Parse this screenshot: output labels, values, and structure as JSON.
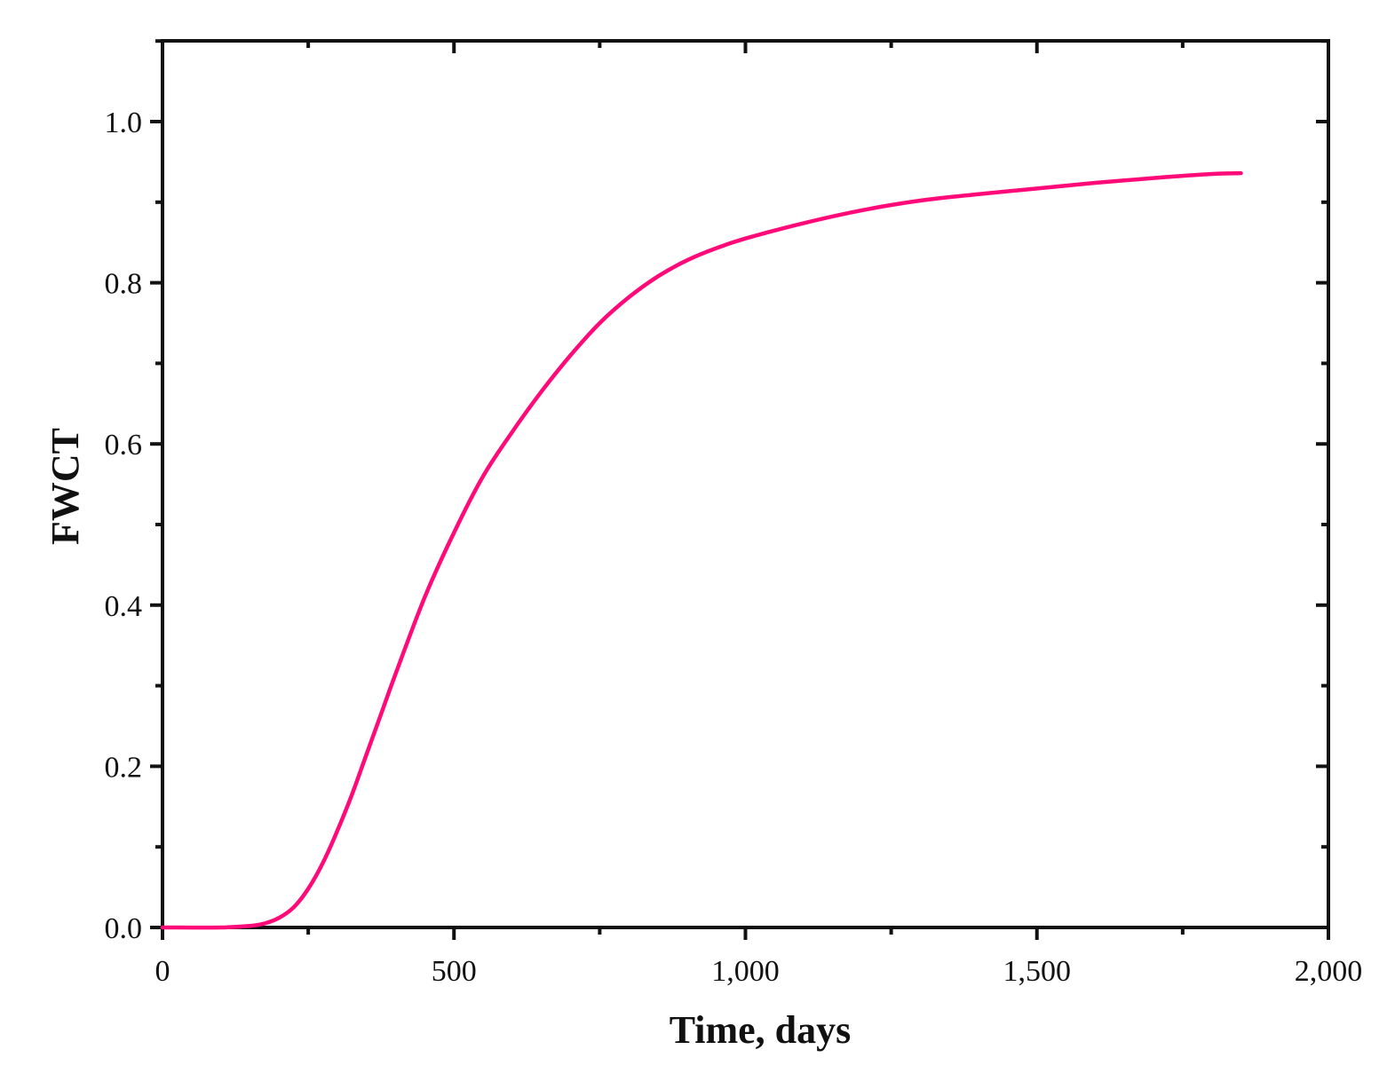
{
  "chart_data": {
    "type": "line",
    "title": "",
    "xlabel": "Time, days",
    "ylabel": "FWCT",
    "xlim": [
      0,
      2000
    ],
    "ylim": [
      0,
      1.1
    ],
    "x_major_ticks": [
      0,
      500,
      1000,
      1500,
      2000
    ],
    "x_tick_labels": [
      "0",
      "500",
      "1,000",
      "1,500",
      "2,000"
    ],
    "y_major_ticks": [
      0.0,
      0.2,
      0.4,
      0.6,
      0.8,
      1.0
    ],
    "y_tick_labels": [
      "0.0",
      "0.2",
      "0.4",
      "0.6",
      "0.8",
      "1.0"
    ],
    "grid": false,
    "legend": "none",
    "line_color": "#ff0a78",
    "series": [
      {
        "x": [
          0,
          100,
          150,
          175,
          200,
          225,
          250,
          275,
          300,
          325,
          350,
          375,
          400,
          450,
          500,
          550,
          600,
          650,
          700,
          750,
          800,
          850,
          900,
          950,
          1000,
          1100,
          1200,
          1300,
          1400,
          1500,
          1600,
          1700,
          1800,
          1850
        ],
        "y": [
          0.0,
          0.0,
          0.002,
          0.005,
          0.012,
          0.025,
          0.048,
          0.08,
          0.12,
          0.165,
          0.215,
          0.265,
          0.315,
          0.41,
          0.49,
          0.56,
          0.615,
          0.665,
          0.71,
          0.75,
          0.782,
          0.808,
          0.828,
          0.843,
          0.855,
          0.874,
          0.89,
          0.902,
          0.91,
          0.917,
          0.924,
          0.93,
          0.935,
          0.936
        ]
      }
    ]
  }
}
